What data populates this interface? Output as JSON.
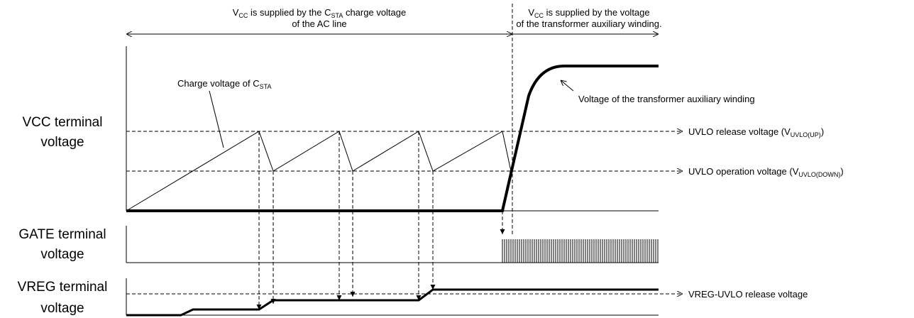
{
  "header": {
    "left": {
      "line1": [
        "V",
        "CC",
        " is supplied by the C",
        "STA",
        " charge voltage"
      ],
      "line2": "of the AC line"
    },
    "right": {
      "line1": [
        "V",
        "CC",
        " is supplied by the voltage"
      ],
      "line2": "of the transformer auxiliary winding."
    }
  },
  "panels": {
    "vcc": {
      "label": [
        "VCC terminal",
        "voltage"
      ],
      "charge_label": [
        "Charge voltage of C",
        "STA"
      ],
      "aux_label": "Voltage of the transformer auxiliary winding",
      "release": [
        "UVLO release voltage (V",
        "UVLO(UP)",
        ")"
      ],
      "operation": [
        "UVLO operation voltage (V",
        "UVLO(DOWN)",
        ")"
      ]
    },
    "gate": {
      "label": [
        "GATE terminal",
        "voltage"
      ]
    },
    "vreg": {
      "label": [
        "VREG terminal",
        "voltage"
      ],
      "release": "VREG-UVLO release voltage"
    }
  }
}
